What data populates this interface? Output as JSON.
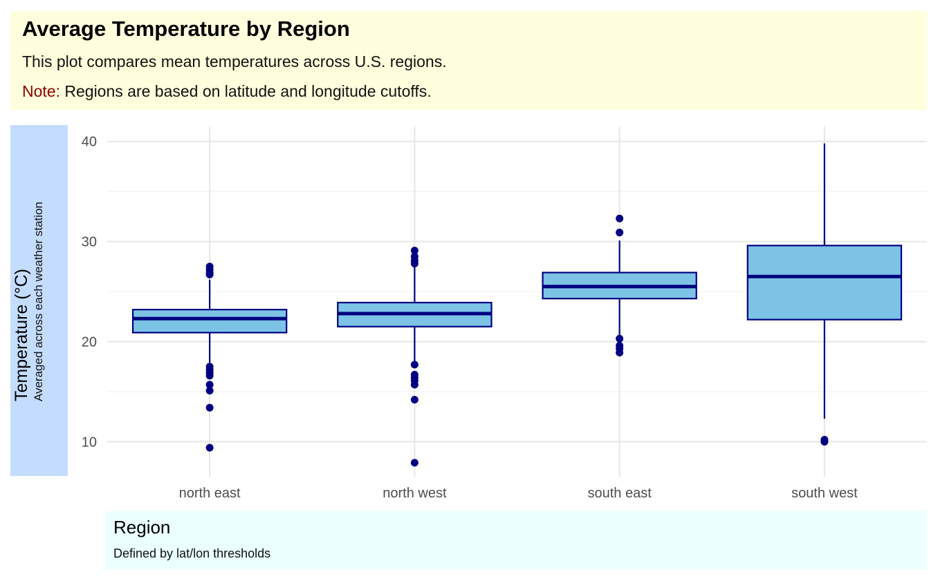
{
  "header": {
    "title": "Average Temperature by Region",
    "subtitle": "This plot compares mean temperatures across U.S. regions.",
    "note_prefix": "Note:",
    "note_text": " Regions are based on latitude and longitude cutoffs."
  },
  "colors": {
    "title_bg": "#ffffdd",
    "ylab_bg": "#c4dcff",
    "xlab_bg": "#ebffff",
    "box_fill": "#7cc3e5",
    "box_line": "#000080",
    "grid": "#e6e6e6",
    "note_prefix": "#8b0000"
  },
  "chart_data": {
    "type": "box",
    "title": "Average Temperature by Region",
    "subtitle": "This plot compares mean temperatures across U.S. regions.",
    "xlabel": "Region",
    "xlabel_sub": "Defined by lat/lon thresholds",
    "ylabel": "Temperature (°C)",
    "ylabel_sub": "Averaged across each weather station",
    "ylim": [
      6.5,
      41.5
    ],
    "y_ticks": [
      10,
      20,
      30,
      40
    ],
    "grid": true,
    "categories": [
      "north east",
      "north west",
      "south east",
      "south west"
    ],
    "boxes": [
      {
        "category": "north east",
        "whisker_low": 17.9,
        "q1": 20.9,
        "median": 22.3,
        "q3": 23.2,
        "whisker_high": 26.2,
        "outliers": [
          27.5,
          27.2,
          26.9,
          26.7,
          17.5,
          17.2,
          16.9,
          16.6,
          15.7,
          15.1,
          13.4,
          9.4
        ]
      },
      {
        "category": "north west",
        "whisker_low": 18.0,
        "q1": 21.5,
        "median": 22.8,
        "q3": 23.9,
        "whisker_high": 27.5,
        "outliers": [
          29.1,
          28.5,
          28.1,
          27.8,
          17.7,
          16.7,
          16.4,
          16.1,
          15.7,
          14.2,
          7.9
        ]
      },
      {
        "category": "south east",
        "whisker_low": 20.5,
        "q1": 24.3,
        "median": 25.5,
        "q3": 26.9,
        "whisker_high": 30.1,
        "outliers": [
          32.3,
          30.9,
          20.3,
          19.6,
          19.3,
          18.9
        ]
      },
      {
        "category": "south west",
        "whisker_low": 12.3,
        "q1": 22.2,
        "median": 26.5,
        "q3": 29.6,
        "whisker_high": 39.8,
        "outliers": [
          10.2,
          10.0
        ]
      }
    ]
  }
}
